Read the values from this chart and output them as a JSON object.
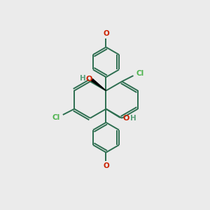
{
  "bg_color": "#ebebeb",
  "bond_color": "#2d6e50",
  "cl_color": "#4db34d",
  "o_color": "#cc2200",
  "h_color": "#5a9e7a",
  "line_width": 1.4,
  "figsize": [
    3.0,
    3.0
  ],
  "dpi": 100,
  "xlim": [
    0,
    10
  ],
  "ylim": [
    0,
    10
  ]
}
